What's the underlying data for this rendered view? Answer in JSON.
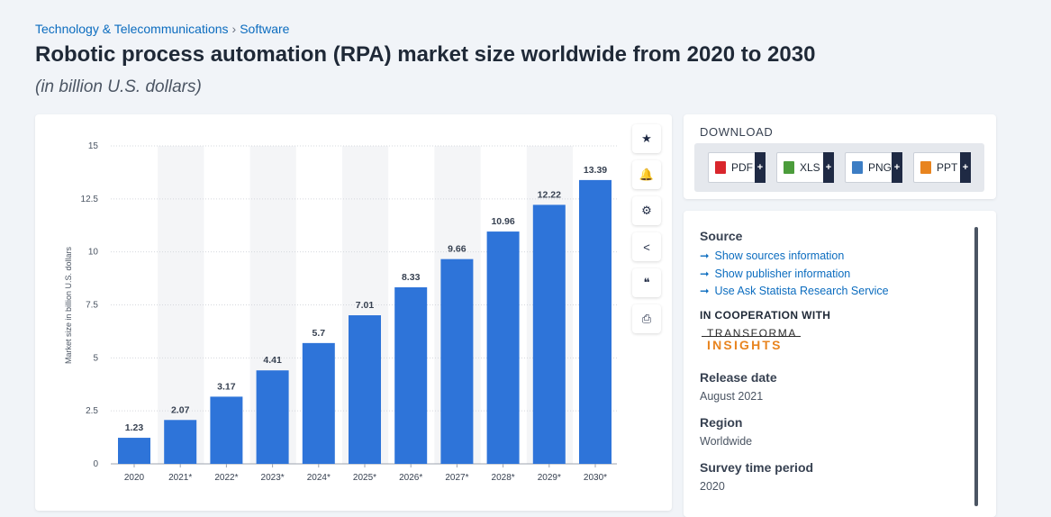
{
  "breadcrumb": {
    "category": "Technology & Telecommunications",
    "separator": "›",
    "subcategory": "Software"
  },
  "page": {
    "title": "Robotic process automation (RPA) market size worldwide from 2020 to 2030",
    "subtitle": "(in billion U.S. dollars)"
  },
  "tools": [
    {
      "name": "star-icon",
      "glyph": "★"
    },
    {
      "name": "bell-icon",
      "glyph": "🔔"
    },
    {
      "name": "gear-icon",
      "glyph": "⚙"
    },
    {
      "name": "share-icon",
      "glyph": "<"
    },
    {
      "name": "quote-icon",
      "glyph": "❝"
    },
    {
      "name": "print-icon",
      "glyph": "⎙"
    }
  ],
  "download": {
    "title": "DOWNLOAD",
    "buttons": [
      {
        "label": "PDF",
        "icon": "pdf-icon",
        "color": "#d9262c",
        "plus": "+"
      },
      {
        "label": "XLS",
        "icon": "xls-icon",
        "color": "#4b9c3b",
        "plus": "+"
      },
      {
        "label": "PNG",
        "icon": "png-icon",
        "color": "#3c7dc4",
        "plus": "+"
      },
      {
        "label": "PPT",
        "icon": "ppt-icon",
        "color": "#e8841f",
        "plus": "+"
      }
    ]
  },
  "info": {
    "source_heading": "Source",
    "links": [
      {
        "arrow": "➞",
        "label": "Show sources information"
      },
      {
        "arrow": "➞",
        "label": "Show publisher information"
      },
      {
        "arrow": "➞",
        "label": "Use Ask Statista Research Service"
      }
    ],
    "cooperation_heading": "IN COOPERATION WITH",
    "logo": {
      "line1": "TRANSFORMA",
      "line2": "INSIGHTS"
    },
    "release_heading": "Release date",
    "release_value": "August 2021",
    "region_heading": "Region",
    "region_value": "Worldwide",
    "survey_heading": "Survey time period",
    "survey_value": "2020"
  },
  "colors": {
    "bar": "#2e74d9",
    "link": "#0b6cbf",
    "dark": "#1f2a44"
  },
  "chart_data": {
    "type": "bar",
    "ylabel": "Market size in billion U.S. dollars",
    "ylim": [
      0,
      15
    ],
    "yticks": [
      "0",
      "2.5",
      "5",
      "7.5",
      "10",
      "12.5",
      "15"
    ],
    "categories": [
      "2020",
      "2021*",
      "2022*",
      "2023*",
      "2024*",
      "2025*",
      "2026*",
      "2027*",
      "2028*",
      "2029*",
      "2030*"
    ],
    "values": [
      1.23,
      2.07,
      3.17,
      4.41,
      5.7,
      7.01,
      8.33,
      9.66,
      10.96,
      12.22,
      13.39
    ],
    "value_labels": [
      "1.23",
      "2.07",
      "3.17",
      "4.41",
      "5.7",
      "7.01",
      "8.33",
      "9.66",
      "10.96",
      "12.22",
      "13.39"
    ],
    "grid": true
  }
}
